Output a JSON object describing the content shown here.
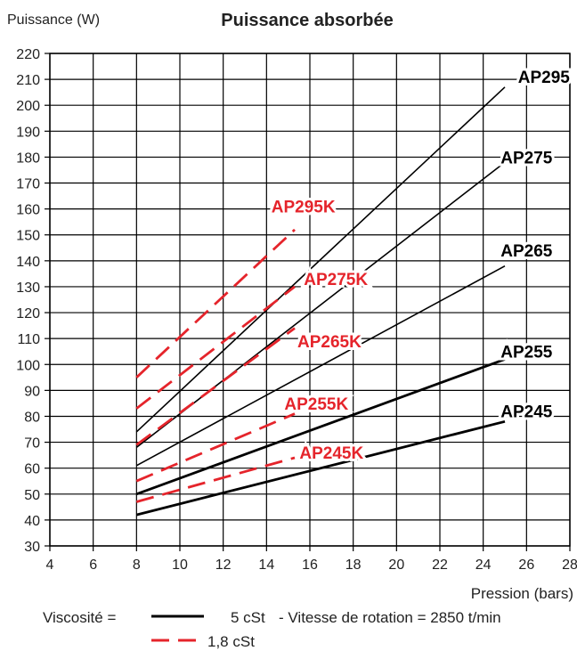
{
  "chart_data": {
    "type": "line",
    "title": "Puissance absorbée",
    "ylabel": "Puissance (W)",
    "xlabel": "Pression (bars)",
    "xlim": [
      4,
      28
    ],
    "ylim": [
      30,
      220
    ],
    "xticks": [
      4,
      6,
      8,
      10,
      12,
      14,
      16,
      18,
      20,
      22,
      24,
      26,
      28
    ],
    "yticks": [
      30,
      40,
      50,
      60,
      70,
      80,
      90,
      100,
      110,
      120,
      130,
      140,
      150,
      160,
      170,
      180,
      190,
      200,
      210,
      220
    ],
    "grid": true,
    "series": [
      {
        "name": "AP295",
        "style": "solid",
        "weight": "thin",
        "color": "#000000",
        "x": [
          8,
          25
        ],
        "y": [
          74,
          207
        ]
      },
      {
        "name": "AP275",
        "style": "solid",
        "weight": "thin",
        "color": "#000000",
        "x": [
          8,
          25
        ],
        "y": [
          68,
          178
        ]
      },
      {
        "name": "AP265",
        "style": "solid",
        "weight": "thin",
        "color": "#000000",
        "x": [
          8,
          25
        ],
        "y": [
          61,
          138
        ]
      },
      {
        "name": "AP255",
        "style": "solid",
        "weight": "thick",
        "color": "#000000",
        "x": [
          8,
          25
        ],
        "y": [
          50,
          102
        ]
      },
      {
        "name": "AP245",
        "style": "solid",
        "weight": "thick",
        "color": "#000000",
        "x": [
          8,
          25
        ],
        "y": [
          42,
          78
        ]
      },
      {
        "name": "AP295K",
        "style": "dashed",
        "weight": "thick",
        "color": "#e5242b",
        "x": [
          8,
          15.3
        ],
        "y": [
          95,
          152
        ]
      },
      {
        "name": "AP275K",
        "style": "dashed",
        "weight": "thick",
        "color": "#e5242b",
        "x": [
          8,
          15.3
        ],
        "y": [
          83,
          130
        ]
      },
      {
        "name": "AP265K",
        "style": "dashed",
        "weight": "thick",
        "color": "#e5242b",
        "x": [
          8,
          15.3
        ],
        "y": [
          69,
          114
        ]
      },
      {
        "name": "AP255K",
        "style": "dashed",
        "weight": "thick",
        "color": "#e5242b",
        "x": [
          8,
          15.3
        ],
        "y": [
          55,
          81
        ]
      },
      {
        "name": "AP245K",
        "style": "dashed",
        "weight": "thick",
        "color": "#e5242b",
        "x": [
          8,
          15.3
        ],
        "y": [
          47,
          64
        ]
      }
    ],
    "labels": [
      {
        "text": "AP295",
        "color": "#000000",
        "x": 26.8,
        "y": 211
      },
      {
        "text": "AP275",
        "color": "#000000",
        "x": 26.0,
        "y": 180
      },
      {
        "text": "AP265",
        "color": "#000000",
        "x": 26.0,
        "y": 144
      },
      {
        "text": "AP255",
        "color": "#000000",
        "x": 26.0,
        "y": 105
      },
      {
        "text": "AP245",
        "color": "#000000",
        "x": 26.0,
        "y": 82
      },
      {
        "text": "AP295K",
        "color": "#e5242b",
        "x": 15.7,
        "y": 161
      },
      {
        "text": "AP275K",
        "color": "#e5242b",
        "x": 17.2,
        "y": 133
      },
      {
        "text": "AP265K",
        "color": "#e5242b",
        "x": 16.9,
        "y": 109
      },
      {
        "text": "AP255K",
        "color": "#e5242b",
        "x": 16.3,
        "y": 85
      },
      {
        "text": "AP245K",
        "color": "#e5242b",
        "x": 17.0,
        "y": 66
      }
    ]
  },
  "legend": {
    "viscosity_label": "Viscosité =",
    "solid_label": "5 cSt",
    "dashed_label": "1,8 cSt",
    "speed_note": "- Vitesse de rotation = 2850 t/min"
  },
  "colors": {
    "red": "#e5242b",
    "black": "#000000"
  }
}
